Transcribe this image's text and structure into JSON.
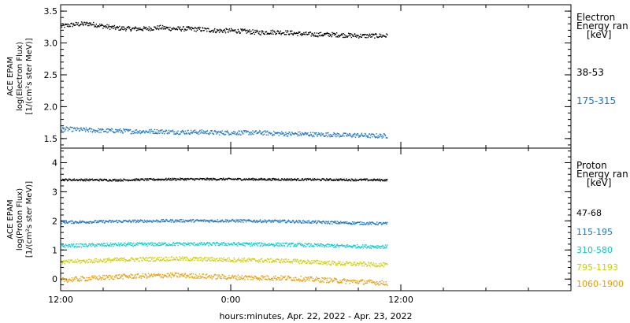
{
  "x_axis": {
    "label": "hours:minutes, Apr. 22, 2022 - Apr. 23, 2022",
    "ticks": [
      {
        "hour": 0,
        "label": "12:00"
      },
      {
        "hour": 12,
        "label": "0:00"
      },
      {
        "hour": 24,
        "label": "12:00"
      }
    ],
    "range_hours": [
      0,
      36
    ],
    "data_end_hour": 23.0
  },
  "chart_data": [
    {
      "type": "scatter",
      "panel": "electron",
      "ylabel_lines": [
        "ACE EPAM",
        "log(Electron Flux)",
        "[1/(cm²s ster MeV)]"
      ],
      "ylim": [
        1.35,
        3.6
      ],
      "yticks": [
        1.5,
        2.0,
        2.5,
        3.0,
        3.5
      ],
      "ytick_labels": [
        "1.5",
        "2.0",
        "2.5",
        "3.0",
        "3.5"
      ],
      "legend_title_lines": [
        "Electron",
        "Energy ran",
        "[keV]"
      ],
      "series": [
        {
          "name": "38-53",
          "color": "#000000",
          "x": [
            0,
            1,
            2,
            3,
            4,
            5,
            6,
            7,
            8,
            9,
            10,
            11,
            12,
            13,
            14,
            15,
            16,
            17,
            18,
            19,
            20,
            21,
            22,
            23
          ],
          "y": [
            3.27,
            3.3,
            3.31,
            3.27,
            3.24,
            3.23,
            3.23,
            3.25,
            3.23,
            3.23,
            3.22,
            3.2,
            3.2,
            3.19,
            3.17,
            3.18,
            3.17,
            3.15,
            3.14,
            3.14,
            3.13,
            3.12,
            3.12,
            3.12
          ]
        },
        {
          "name": "175-315",
          "color": "#1874cd",
          "x": [
            0,
            1,
            2,
            3,
            4,
            5,
            6,
            7,
            8,
            9,
            10,
            11,
            12,
            13,
            14,
            15,
            16,
            17,
            18,
            19,
            20,
            21,
            22,
            23
          ],
          "y": [
            1.66,
            1.65,
            1.64,
            1.63,
            1.63,
            1.62,
            1.62,
            1.62,
            1.61,
            1.61,
            1.61,
            1.6,
            1.6,
            1.6,
            1.6,
            1.59,
            1.58,
            1.58,
            1.57,
            1.57,
            1.56,
            1.56,
            1.55,
            1.55
          ]
        }
      ]
    },
    {
      "type": "scatter",
      "panel": "proton",
      "ylabel_lines": [
        "ACE EPAM",
        "log(Proton Flux)",
        "[1/(cm²s ster MeV)]"
      ],
      "ylim": [
        -0.4,
        4.5
      ],
      "yticks": [
        0,
        1,
        2,
        3,
        4
      ],
      "ytick_labels": [
        "0",
        "1",
        "2",
        "3",
        "4"
      ],
      "legend_title_lines": [
        "Proton",
        "Energy ran",
        "[keV]"
      ],
      "series": [
        {
          "name": "47-68",
          "color": "#000000",
          "x": [
            0,
            4,
            8,
            12,
            16,
            20,
            23
          ],
          "y": [
            3.43,
            3.42,
            3.45,
            3.45,
            3.44,
            3.43,
            3.42
          ]
        },
        {
          "name": "115-195",
          "color": "#1874cd",
          "x": [
            0,
            4,
            8,
            12,
            16,
            20,
            23
          ],
          "y": [
            1.97,
            2.0,
            2.02,
            2.02,
            2.0,
            1.95,
            1.92
          ]
        },
        {
          "name": "310-580",
          "color": "#00cdcd",
          "x": [
            0,
            4,
            8,
            12,
            16,
            20,
            23
          ],
          "y": [
            1.16,
            1.2,
            1.22,
            1.22,
            1.2,
            1.15,
            1.13
          ]
        },
        {
          "name": "795-1193",
          "color": "#cdcd00",
          "x": [
            0,
            4,
            8,
            12,
            16,
            20,
            23
          ],
          "y": [
            0.6,
            0.68,
            0.72,
            0.68,
            0.64,
            0.55,
            0.5
          ]
        },
        {
          "name": "1060-1900",
          "color": "#ee9a00",
          "x": [
            0,
            4,
            8,
            12,
            16,
            20,
            23
          ],
          "y": [
            -0.02,
            0.1,
            0.15,
            0.08,
            0.05,
            -0.05,
            -0.12
          ]
        }
      ]
    }
  ]
}
